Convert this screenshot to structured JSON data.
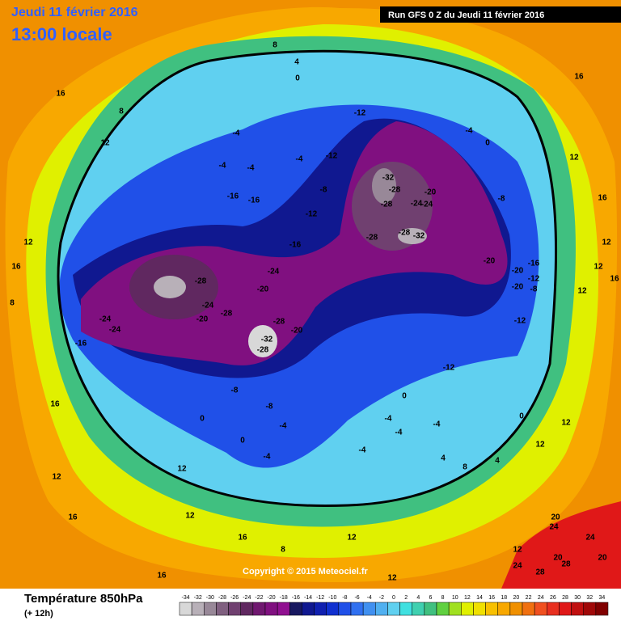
{
  "header": {
    "date": "Jeudi 11 février 2016",
    "time": "13:00 locale",
    "run": "Run GFS 0 Z du Jeudi 11 février 2016"
  },
  "footer": {
    "title": "Température 850hPa",
    "step": "(+ 12h)",
    "copyright": "Copyright © 2015 Meteociel.fr"
  },
  "colorbar": {
    "ticks": [
      -34,
      -32,
      -30,
      -28,
      -26,
      -24,
      -22,
      -20,
      -18,
      -16,
      -14,
      -12,
      -10,
      -8,
      -6,
      -4,
      -2,
      0,
      2,
      4,
      6,
      8,
      10,
      12,
      14,
      16,
      18,
      20,
      22,
      24,
      26,
      28,
      30,
      32,
      34
    ],
    "colors": [
      "#d8d8d8",
      "#b8b0b8",
      "#988898",
      "#806080",
      "#704070",
      "#602860",
      "#701870",
      "#801080",
      "#901090",
      "#181860",
      "#101890",
      "#1020b0",
      "#1030d0",
      "#2050e8",
      "#3070f0",
      "#4090f0",
      "#50b0f0",
      "#60d0f0",
      "#40e0e0",
      "#40d0b0",
      "#40c080",
      "#60d040",
      "#a0e020",
      "#e0f000",
      "#f0e000",
      "#f8c000",
      "#f8a800",
      "#f09000",
      "#f07010",
      "#f05020",
      "#e83020",
      "#e01818",
      "#c01010",
      "#a00808",
      "#800000"
    ]
  },
  "contour_labels": [
    -12,
    -12,
    -12,
    -16,
    -4,
    -4,
    -4,
    -4,
    -16,
    -16,
    -24,
    -20,
    -28,
    -24,
    -28,
    -20,
    -24,
    -24,
    -16,
    -28,
    -20,
    -32,
    -28,
    -32,
    -28,
    -28,
    -20,
    -24,
    -24,
    -28,
    -28,
    -32,
    -20,
    -20,
    -20,
    -16,
    -12,
    -8,
    -12,
    -8,
    -4,
    0,
    0,
    4,
    8,
    8,
    12,
    16,
    12,
    16,
    8,
    -8,
    -8,
    -4,
    0,
    0,
    -4,
    -4,
    -4,
    -4,
    -4,
    0,
    4,
    8,
    4,
    0,
    12,
    12,
    16,
    12,
    16,
    12,
    12,
    16,
    12,
    16,
    16,
    8,
    12,
    12,
    12,
    20,
    24,
    24,
    20,
    20,
    28,
    28,
    24,
    12,
    16,
    12,
    16,
    12,
    -12,
    -8
  ]
}
